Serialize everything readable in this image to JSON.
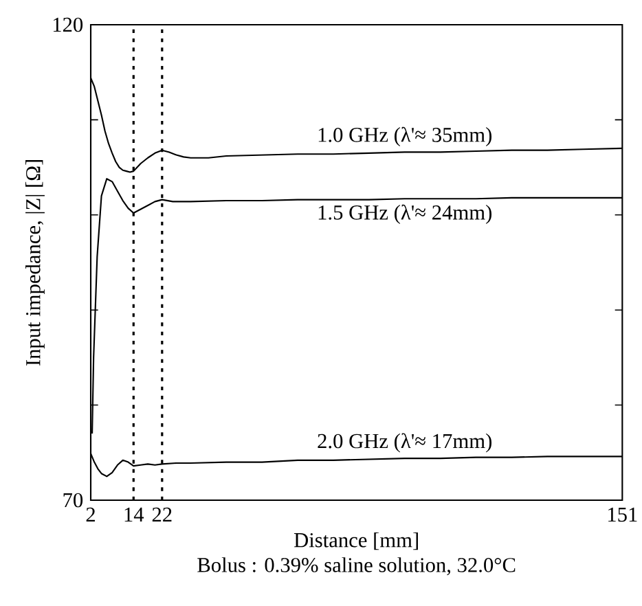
{
  "chart_data": {
    "type": "line",
    "xlabel": "Distance [mm]",
    "ylabel": "Input impedance, |Z| [Ω]",
    "xlim": [
      2,
      151
    ],
    "ylim": [
      70,
      120
    ],
    "xticks": [
      2,
      14,
      22,
      151
    ],
    "yticks": [
      70,
      {
        "value": 80,
        "label": null
      },
      {
        "value": 90,
        "label": null
      },
      {
        "value": 100,
        "label": null
      },
      {
        "value": 110,
        "label": null
      },
      120
    ],
    "marker": "none",
    "line_style": "solid",
    "series": [
      {
        "name": "1.0 GHz (λ'≈ 35mm)",
        "color": "#000000",
        "x": [
          2,
          3,
          4,
          5,
          6,
          7,
          8,
          9,
          10,
          11,
          12,
          13,
          14,
          15,
          16,
          18,
          20,
          22,
          24,
          26,
          28,
          30,
          35,
          40,
          50,
          60,
          70,
          80,
          90,
          100,
          110,
          120,
          130,
          140,
          151
        ],
        "values": [
          114.4,
          113.5,
          112,
          110.5,
          108.8,
          107.5,
          106.5,
          105.6,
          105,
          104.7,
          104.6,
          104.5,
          104.6,
          105,
          105.4,
          106,
          106.5,
          106.8,
          106.6,
          106.3,
          106.1,
          106.0,
          106.0,
          106.2,
          106.3,
          106.4,
          106.4,
          106.5,
          106.6,
          106.6,
          106.7,
          106.8,
          106.8,
          106.9,
          107.0
        ]
      },
      {
        "name": "1.5 GHz (λ'≈ 24mm)",
        "color": "#000000",
        "x": [
          2.4,
          2.8,
          3.8,
          5,
          6.5,
          8,
          9.5,
          11,
          12.5,
          14,
          16,
          18,
          20,
          22,
          25,
          30,
          40,
          50,
          60,
          70,
          80,
          90,
          100,
          110,
          120,
          130,
          140,
          151
        ],
        "values": [
          77,
          85,
          95.6,
          102,
          103.8,
          103.5,
          102.5,
          101.5,
          100.7,
          100.2,
          100.6,
          101,
          101.4,
          101.6,
          101.4,
          101.4,
          101.5,
          101.5,
          101.6,
          101.6,
          101.6,
          101.7,
          101.7,
          101.7,
          101.8,
          101.8,
          101.8,
          101.8
        ]
      },
      {
        "name": "2.0 GHz (λ'≈ 17mm)",
        "color": "#000000",
        "x": [
          2,
          3,
          4,
          5,
          6.5,
          8,
          9.5,
          11,
          12.5,
          14,
          16,
          18,
          20,
          22,
          26,
          30,
          40,
          50,
          60,
          70,
          80,
          90,
          100,
          110,
          120,
          130,
          140,
          151
        ],
        "values": [
          74.9,
          74,
          73.3,
          72.8,
          72.5,
          72.9,
          73.7,
          74.2,
          74,
          73.6,
          73.7,
          73.8,
          73.7,
          73.8,
          73.9,
          73.9,
          74,
          74,
          74.2,
          74.2,
          74.3,
          74.4,
          74.4,
          74.5,
          74.5,
          74.6,
          74.6,
          74.6
        ]
      }
    ],
    "ref_lines": [
      {
        "axis": "x",
        "value": 14,
        "color": "#000000",
        "line_style": "dotted"
      },
      {
        "axis": "x",
        "value": 22,
        "color": "#000000",
        "line_style": "dotted"
      }
    ],
    "annotations": [
      "Bolus : 0.39% saline solution, 32.0°C"
    ]
  }
}
